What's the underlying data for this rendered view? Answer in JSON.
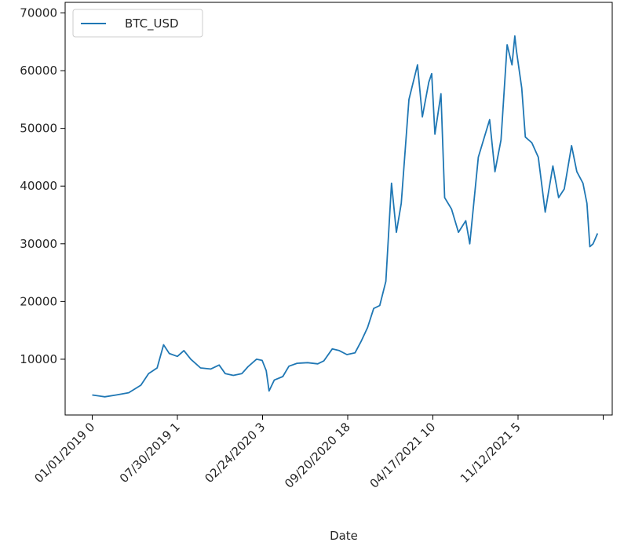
{
  "chart_data": {
    "type": "line",
    "xlabel": "Date",
    "ylabel": "",
    "title": "",
    "ylim": [
      0,
      70000
    ],
    "y_ticks": [
      10000,
      20000,
      30000,
      40000,
      50000,
      60000,
      70000
    ],
    "x_tick_labels": [
      "01/01/2019 0",
      "07/30/2019 1",
      "02/24/2020 3",
      "09/20/2020 18",
      "04/17/2021 10",
      "11/12/2021 5"
    ],
    "legend_position": "upper-left",
    "grid": false,
    "series": [
      {
        "name": "BTC_USD",
        "color": "#1f77b4",
        "x": [
          "2019-01-01",
          "2019-02-01",
          "2019-03-01",
          "2019-04-01",
          "2019-05-01",
          "2019-05-20",
          "2019-06-10",
          "2019-06-26",
          "2019-07-10",
          "2019-07-30",
          "2019-08-15",
          "2019-09-01",
          "2019-09-25",
          "2019-10-20",
          "2019-11-10",
          "2019-11-25",
          "2019-12-15",
          "2020-01-05",
          "2020-01-20",
          "2020-02-10",
          "2020-02-24",
          "2020-03-05",
          "2020-03-12",
          "2020-03-25",
          "2020-04-15",
          "2020-04-30",
          "2020-05-20",
          "2020-06-15",
          "2020-07-10",
          "2020-07-25",
          "2020-08-15",
          "2020-09-01",
          "2020-09-20",
          "2020-10-10",
          "2020-10-25",
          "2020-11-10",
          "2020-11-25",
          "2020-12-10",
          "2020-12-25",
          "2021-01-08",
          "2021-01-20",
          "2021-02-01",
          "2021-02-20",
          "2021-03-13",
          "2021-03-25",
          "2021-04-10",
          "2021-04-17",
          "2021-04-25",
          "2021-05-10",
          "2021-05-19",
          "2021-06-05",
          "2021-06-22",
          "2021-07-10",
          "2021-07-20",
          "2021-08-10",
          "2021-08-25",
          "2021-09-07",
          "2021-09-20",
          "2021-10-05",
          "2021-10-20",
          "2021-11-01",
          "2021-11-08",
          "2021-11-12",
          "2021-11-25",
          "2021-12-04",
          "2021-12-20",
          "2022-01-05",
          "2022-01-22",
          "2022-02-10",
          "2022-02-24",
          "2022-03-10",
          "2022-03-28",
          "2022-04-10",
          "2022-04-25",
          "2022-05-05",
          "2022-05-12",
          "2022-05-20",
          "2022-05-31"
        ],
        "values": [
          3800,
          3500,
          3800,
          4200,
          5500,
          7500,
          8500,
          12500,
          11000,
          10500,
          11500,
          10000,
          8500,
          8300,
          9000,
          7500,
          7200,
          7500,
          8700,
          10000,
          9800,
          8000,
          4500,
          6400,
          7000,
          8800,
          9300,
          9400,
          9200,
          9700,
          11800,
          11500,
          10800,
          11100,
          13100,
          15500,
          18800,
          19300,
          23500,
          40500,
          32000,
          37000,
          55000,
          61000,
          52000,
          58000,
          59500,
          49000,
          56000,
          38000,
          36000,
          32000,
          34000,
          30000,
          45000,
          48500,
          51500,
          42500,
          48000,
          64500,
          61000,
          66000,
          63500,
          57000,
          48500,
          47500,
          45000,
          35500,
          43500,
          38000,
          39500,
          47000,
          42500,
          40500,
          37000,
          29500,
          30000,
          31800
        ]
      }
    ]
  }
}
